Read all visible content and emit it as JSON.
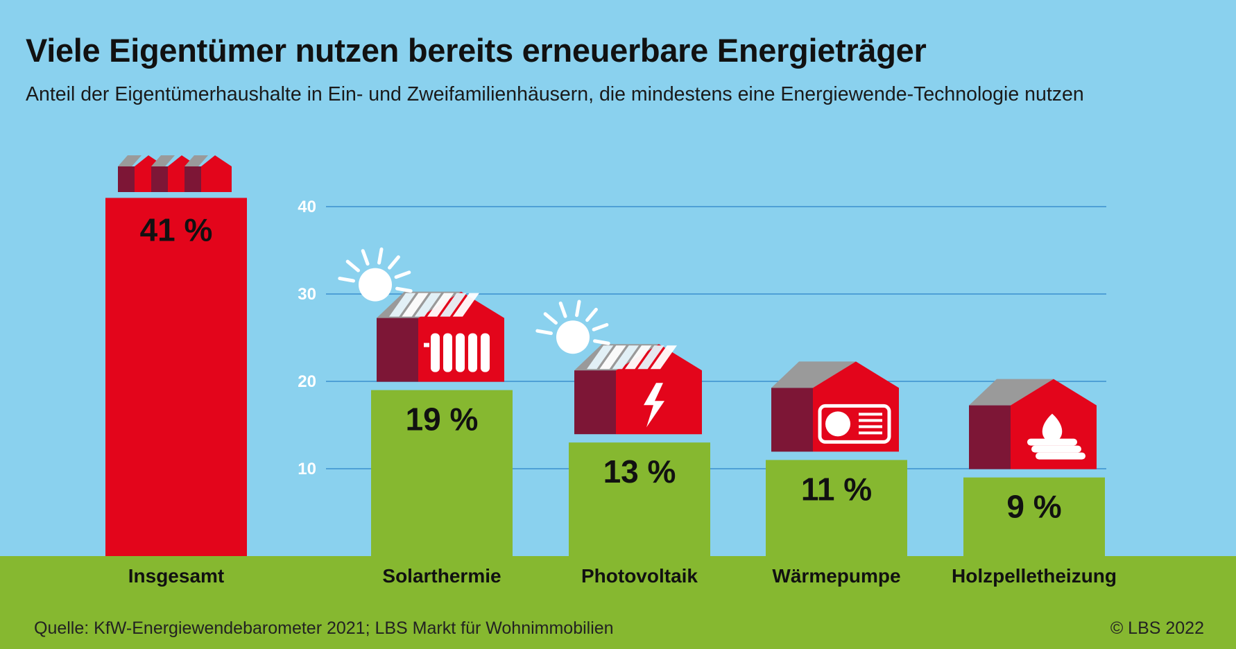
{
  "title": "Viele Eigentümer nutzen bereits erneuerbare Energieträger",
  "subtitle": "Anteil der Eigentümerhaushalte in Ein- und Zweifamilienhäusern, die mindestens eine Energiewende-Technologie nutzen",
  "source": "Quelle: KfW-Energiewendebarometer 2021; LBS Markt für Wohnimmobilien",
  "copyright": "© LBS 2022",
  "colors": {
    "background": "#8ad1ee",
    "ground": "#86b830",
    "total_bar": "#e3051b",
    "bars": "#86b830",
    "gridline": "#3a8fce",
    "house_dark": "#7d1636",
    "house_red": "#e3051b",
    "roof_grey": "#9a9a9a"
  },
  "chart_data": {
    "type": "bar",
    "categories": [
      "Insgesamt",
      "Solarthermie",
      "Photovoltaik",
      "Wärmepumpe",
      "Holzpelletheizung"
    ],
    "values": [
      41,
      19,
      13,
      11,
      9
    ],
    "value_labels": [
      "41 %",
      "19 %",
      "13 %",
      "11 %",
      "9 %"
    ],
    "icons": [
      "three-houses-icon",
      "solar-thermal-house-icon",
      "photovoltaic-house-icon",
      "heat-pump-house-icon",
      "wood-pellet-house-icon"
    ],
    "yticks": [
      10,
      20,
      30,
      40
    ],
    "ylim": [
      0,
      41
    ],
    "grid": true,
    "legend": "none"
  }
}
